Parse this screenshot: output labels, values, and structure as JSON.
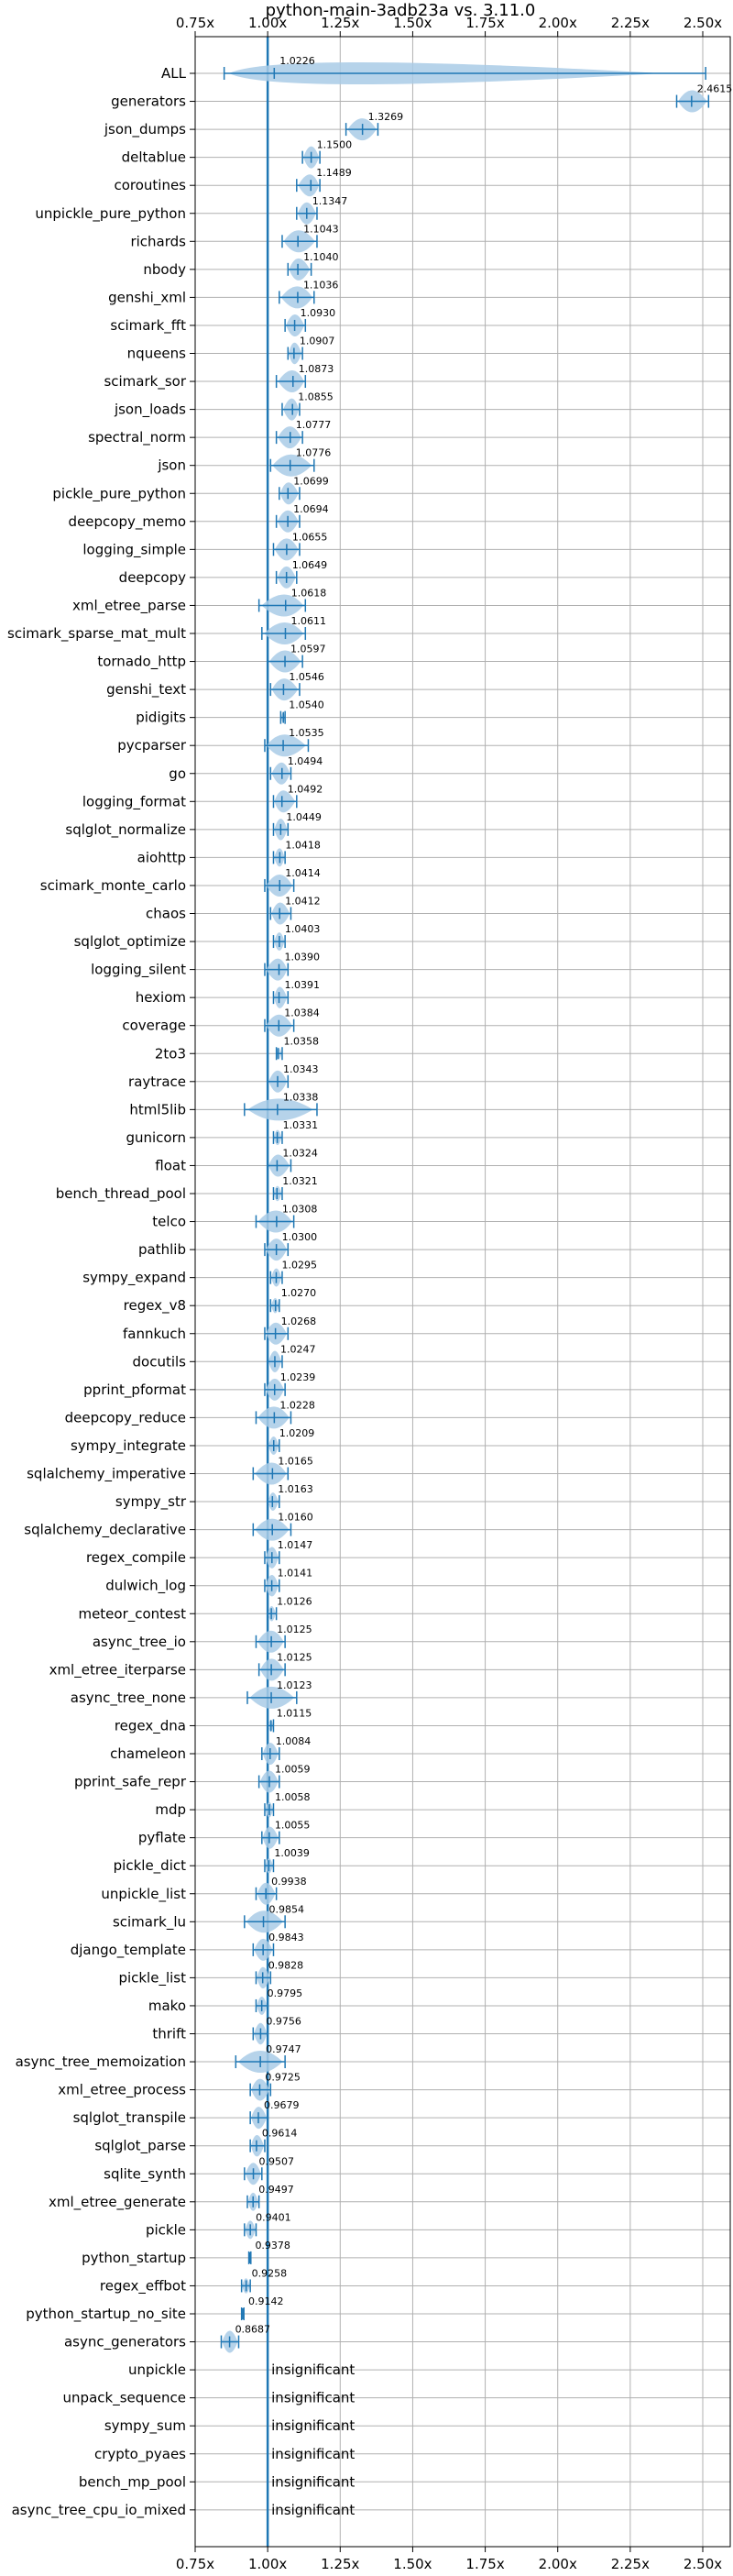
{
  "chart_data": {
    "type": "violin",
    "title": "python-main-3adb23a vs. 3.11.0",
    "xlabel": "",
    "ylabel": "",
    "xlim": [
      0.75,
      2.56
    ],
    "xticks": [
      0.75,
      1.0,
      1.25,
      1.5,
      1.75,
      2.0,
      2.25,
      2.5
    ],
    "xtick_labels": [
      "0.75x",
      "1.00x",
      "1.25x",
      "1.50x",
      "1.75x",
      "2.00x",
      "2.25x",
      "2.50x"
    ],
    "reference_line": 1.0,
    "grid": true,
    "color": "#1f77b4",
    "violin_color": "#a9cbe6",
    "insignificant_label": "insignificant",
    "benchmarks": [
      {
        "name": "ALL",
        "value": 1.0226,
        "label": "1.0226",
        "lo": 0.85,
        "hi": 2.51,
        "width": 0.08
      },
      {
        "name": "generators",
        "value": 2.4615,
        "label": "2.4615",
        "lo": 2.41,
        "hi": 2.52
      },
      {
        "name": "json_dumps",
        "value": 1.3269,
        "label": "1.3269",
        "lo": 1.27,
        "hi": 1.38
      },
      {
        "name": "deltablue",
        "value": 1.15,
        "label": "1.1500",
        "lo": 1.12,
        "hi": 1.18
      },
      {
        "name": "coroutines",
        "value": 1.1489,
        "label": "1.1489",
        "lo": 1.1,
        "hi": 1.18
      },
      {
        "name": "unpickle_pure_python",
        "value": 1.1347,
        "label": "1.1347",
        "lo": 1.1,
        "hi": 1.17
      },
      {
        "name": "richards",
        "value": 1.1043,
        "label": "1.1043",
        "lo": 1.05,
        "hi": 1.17
      },
      {
        "name": "nbody",
        "value": 1.104,
        "label": "1.1040",
        "lo": 1.07,
        "hi": 1.15
      },
      {
        "name": "genshi_xml",
        "value": 1.1036,
        "label": "1.1036",
        "lo": 1.04,
        "hi": 1.16
      },
      {
        "name": "scimark_fft",
        "value": 1.093,
        "label": "1.0930",
        "lo": 1.06,
        "hi": 1.13
      },
      {
        "name": "nqueens",
        "value": 1.0907,
        "label": "1.0907",
        "lo": 1.07,
        "hi": 1.12
      },
      {
        "name": "scimark_sor",
        "value": 1.0873,
        "label": "1.0873",
        "lo": 1.03,
        "hi": 1.13
      },
      {
        "name": "json_loads",
        "value": 1.0855,
        "label": "1.0855",
        "lo": 1.05,
        "hi": 1.11
      },
      {
        "name": "spectral_norm",
        "value": 1.0777,
        "label": "1.0777",
        "lo": 1.03,
        "hi": 1.12
      },
      {
        "name": "json",
        "value": 1.0776,
        "label": "1.0776",
        "lo": 1.01,
        "hi": 1.16
      },
      {
        "name": "pickle_pure_python",
        "value": 1.0699,
        "label": "1.0699",
        "lo": 1.04,
        "hi": 1.11
      },
      {
        "name": "deepcopy_memo",
        "value": 1.0694,
        "label": "1.0694",
        "lo": 1.03,
        "hi": 1.11
      },
      {
        "name": "logging_simple",
        "value": 1.0655,
        "label": "1.0655",
        "lo": 1.02,
        "hi": 1.11
      },
      {
        "name": "deepcopy",
        "value": 1.0649,
        "label": "1.0649",
        "lo": 1.03,
        "hi": 1.1
      },
      {
        "name": "xml_etree_parse",
        "value": 1.0618,
        "label": "1.0618",
        "lo": 0.97,
        "hi": 1.13
      },
      {
        "name": "scimark_sparse_mat_mult",
        "value": 1.0611,
        "label": "1.0611",
        "lo": 0.98,
        "hi": 1.13
      },
      {
        "name": "tornado_http",
        "value": 1.0597,
        "label": "1.0597",
        "lo": 1.0,
        "hi": 1.12
      },
      {
        "name": "genshi_text",
        "value": 1.0546,
        "label": "1.0546",
        "lo": 1.01,
        "hi": 1.11
      },
      {
        "name": "pidigits",
        "value": 1.054,
        "label": "1.0540",
        "lo": 1.045,
        "hi": 1.06
      },
      {
        "name": "pycparser",
        "value": 1.0535,
        "label": "1.0535",
        "lo": 0.99,
        "hi": 1.14
      },
      {
        "name": "go",
        "value": 1.0494,
        "label": "1.0494",
        "lo": 1.01,
        "hi": 1.08
      },
      {
        "name": "logging_format",
        "value": 1.0492,
        "label": "1.0492",
        "lo": 1.02,
        "hi": 1.1
      },
      {
        "name": "sqlglot_normalize",
        "value": 1.0449,
        "label": "1.0449",
        "lo": 1.02,
        "hi": 1.07
      },
      {
        "name": "aiohttp",
        "value": 1.0418,
        "label": "1.0418",
        "lo": 1.02,
        "hi": 1.06
      },
      {
        "name": "scimark_monte_carlo",
        "value": 1.0414,
        "label": "1.0414",
        "lo": 0.99,
        "hi": 1.09
      },
      {
        "name": "chaos",
        "value": 1.0412,
        "label": "1.0412",
        "lo": 1.01,
        "hi": 1.08
      },
      {
        "name": "sqlglot_optimize",
        "value": 1.0403,
        "label": "1.0403",
        "lo": 1.02,
        "hi": 1.06
      },
      {
        "name": "logging_silent",
        "value": 1.039,
        "label": "1.0390",
        "lo": 0.99,
        "hi": 1.07
      },
      {
        "name": "hexiom",
        "value": 1.0391,
        "label": "1.0391",
        "lo": 1.02,
        "hi": 1.07
      },
      {
        "name": "coverage",
        "value": 1.0384,
        "label": "1.0384",
        "lo": 0.99,
        "hi": 1.09
      },
      {
        "name": "2to3",
        "value": 1.0358,
        "label": "1.0358",
        "lo": 1.03,
        "hi": 1.05
      },
      {
        "name": "raytrace",
        "value": 1.0343,
        "label": "1.0343",
        "lo": 1.0,
        "hi": 1.07
      },
      {
        "name": "html5lib",
        "value": 1.0338,
        "label": "1.0338",
        "lo": 0.92,
        "hi": 1.17
      },
      {
        "name": "gunicorn",
        "value": 1.0331,
        "label": "1.0331",
        "lo": 1.02,
        "hi": 1.05
      },
      {
        "name": "float",
        "value": 1.0324,
        "label": "1.0324",
        "lo": 1.0,
        "hi": 1.08
      },
      {
        "name": "bench_thread_pool",
        "value": 1.0321,
        "label": "1.0321",
        "lo": 1.02,
        "hi": 1.05
      },
      {
        "name": "telco",
        "value": 1.0308,
        "label": "1.0308",
        "lo": 0.96,
        "hi": 1.09
      },
      {
        "name": "pathlib",
        "value": 1.03,
        "label": "1.0300",
        "lo": 0.99,
        "hi": 1.07
      },
      {
        "name": "sympy_expand",
        "value": 1.0295,
        "label": "1.0295",
        "lo": 1.01,
        "hi": 1.05
      },
      {
        "name": "regex_v8",
        "value": 1.027,
        "label": "1.0270",
        "lo": 1.01,
        "hi": 1.04
      },
      {
        "name": "fannkuch",
        "value": 1.0268,
        "label": "1.0268",
        "lo": 0.99,
        "hi": 1.07
      },
      {
        "name": "docutils",
        "value": 1.0247,
        "label": "1.0247",
        "lo": 1.0,
        "hi": 1.05
      },
      {
        "name": "pprint_pformat",
        "value": 1.0239,
        "label": "1.0239",
        "lo": 0.99,
        "hi": 1.06
      },
      {
        "name": "deepcopy_reduce",
        "value": 1.0228,
        "label": "1.0228",
        "lo": 0.96,
        "hi": 1.08
      },
      {
        "name": "sympy_integrate",
        "value": 1.0209,
        "label": "1.0209",
        "lo": 1.0,
        "hi": 1.04
      },
      {
        "name": "sqlalchemy_imperative",
        "value": 1.0165,
        "label": "1.0165",
        "lo": 0.95,
        "hi": 1.07
      },
      {
        "name": "sympy_str",
        "value": 1.0163,
        "label": "1.0163",
        "lo": 1.0,
        "hi": 1.04
      },
      {
        "name": "sqlalchemy_declarative",
        "value": 1.016,
        "label": "1.0160",
        "lo": 0.95,
        "hi": 1.08
      },
      {
        "name": "regex_compile",
        "value": 1.0147,
        "label": "1.0147",
        "lo": 0.99,
        "hi": 1.04
      },
      {
        "name": "dulwich_log",
        "value": 1.0141,
        "label": "1.0141",
        "lo": 0.99,
        "hi": 1.04
      },
      {
        "name": "meteor_contest",
        "value": 1.0126,
        "label": "1.0126",
        "lo": 1.0,
        "hi": 1.03
      },
      {
        "name": "async_tree_io",
        "value": 1.0125,
        "label": "1.0125",
        "lo": 0.96,
        "hi": 1.06
      },
      {
        "name": "xml_etree_iterparse",
        "value": 1.0125,
        "label": "1.0125",
        "lo": 0.97,
        "hi": 1.06
      },
      {
        "name": "async_tree_none",
        "value": 1.0123,
        "label": "1.0123",
        "lo": 0.93,
        "hi": 1.1
      },
      {
        "name": "regex_dna",
        "value": 1.0115,
        "label": "1.0115",
        "lo": 1.0,
        "hi": 1.02
      },
      {
        "name": "chameleon",
        "value": 1.0084,
        "label": "1.0084",
        "lo": 0.98,
        "hi": 1.04
      },
      {
        "name": "pprint_safe_repr",
        "value": 1.0059,
        "label": "1.0059",
        "lo": 0.97,
        "hi": 1.04
      },
      {
        "name": "mdp",
        "value": 1.0058,
        "label": "1.0058",
        "lo": 0.99,
        "hi": 1.02
      },
      {
        "name": "pyflate",
        "value": 1.0055,
        "label": "1.0055",
        "lo": 0.98,
        "hi": 1.04
      },
      {
        "name": "pickle_dict",
        "value": 1.0039,
        "label": "1.0039",
        "lo": 0.99,
        "hi": 1.02
      },
      {
        "name": "unpickle_list",
        "value": 0.9938,
        "label": "0.9938",
        "lo": 0.96,
        "hi": 1.03
      },
      {
        "name": "scimark_lu",
        "value": 0.9854,
        "label": "0.9854",
        "lo": 0.92,
        "hi": 1.06
      },
      {
        "name": "django_template",
        "value": 0.9843,
        "label": "0.9843",
        "lo": 0.95,
        "hi": 1.02
      },
      {
        "name": "pickle_list",
        "value": 0.9828,
        "label": "0.9828",
        "lo": 0.96,
        "hi": 1.01
      },
      {
        "name": "mako",
        "value": 0.9795,
        "label": "0.9795",
        "lo": 0.96,
        "hi": 1.0
      },
      {
        "name": "thrift",
        "value": 0.9756,
        "label": "0.9756",
        "lo": 0.95,
        "hi": 1.0
      },
      {
        "name": "async_tree_memoization",
        "value": 0.9747,
        "label": "0.9747",
        "lo": 0.89,
        "hi": 1.06
      },
      {
        "name": "xml_etree_process",
        "value": 0.9725,
        "label": "0.9725",
        "lo": 0.94,
        "hi": 1.01
      },
      {
        "name": "sqlglot_transpile",
        "value": 0.9679,
        "label": "0.9679",
        "lo": 0.94,
        "hi": 1.0
      },
      {
        "name": "sqlglot_parse",
        "value": 0.9614,
        "label": "0.9614",
        "lo": 0.94,
        "hi": 0.99
      },
      {
        "name": "sqlite_synth",
        "value": 0.9507,
        "label": "0.9507",
        "lo": 0.92,
        "hi": 0.98
      },
      {
        "name": "xml_etree_generate",
        "value": 0.9497,
        "label": "0.9497",
        "lo": 0.93,
        "hi": 0.97
      },
      {
        "name": "pickle",
        "value": 0.9401,
        "label": "0.9401",
        "lo": 0.92,
        "hi": 0.96
      },
      {
        "name": "python_startup",
        "value": 0.9378,
        "label": "0.9378",
        "lo": 0.935,
        "hi": 0.942
      },
      {
        "name": "regex_effbot",
        "value": 0.9258,
        "label": "0.9258",
        "lo": 0.91,
        "hi": 0.94
      },
      {
        "name": "python_startup_no_site",
        "value": 0.9142,
        "label": "0.9142",
        "lo": 0.91,
        "hi": 0.918
      },
      {
        "name": "async_generators",
        "value": 0.8687,
        "label": "0.8687",
        "lo": 0.84,
        "hi": 0.9
      },
      {
        "name": "unpickle",
        "insignificant": true
      },
      {
        "name": "unpack_sequence",
        "insignificant": true
      },
      {
        "name": "sympy_sum",
        "insignificant": true
      },
      {
        "name": "crypto_pyaes",
        "insignificant": true
      },
      {
        "name": "bench_mp_pool",
        "insignificant": true
      },
      {
        "name": "async_tree_cpu_io_mixed",
        "insignificant": true
      }
    ]
  }
}
